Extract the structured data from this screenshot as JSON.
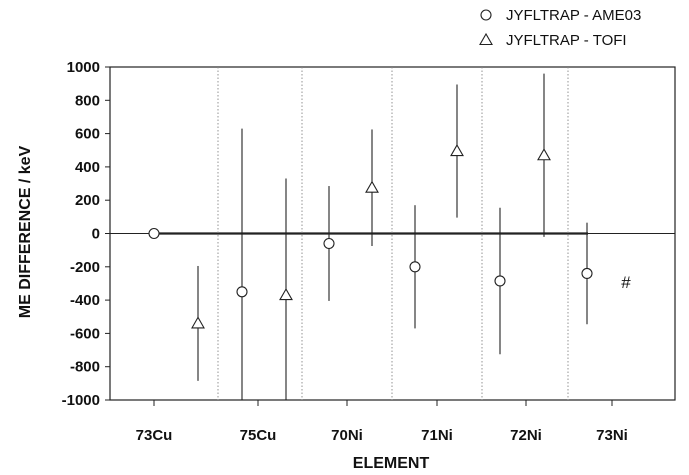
{
  "chart_data": {
    "type": "scatter",
    "xlabel": "ELEMENT",
    "ylabel": "ME DIFFERENCE / keV",
    "ylim": [
      -1000,
      1000
    ],
    "y_ticks": [
      1000,
      800,
      600,
      400,
      200,
      0,
      -200,
      -400,
      -600,
      -800,
      -1000
    ],
    "x_ticks": [
      "73Cu",
      "75Cu",
      "70Ni",
      "71Ni",
      "72Ni",
      "73Ni"
    ],
    "grid": "vertical dotted separators",
    "legend_placement": "top-right",
    "series": [
      {
        "name": "JYFLTRAP - AME03",
        "marker": "circle",
        "points": [
          {
            "element": "73Cu",
            "y": 0,
            "err": 0
          },
          {
            "element": "75Cu",
            "y": -350,
            "err": 980
          },
          {
            "element": "70Ni",
            "y": -60,
            "err": 345
          },
          {
            "element": "71Ni",
            "y": -200,
            "err": 370
          },
          {
            "element": "72Ni",
            "y": -285,
            "err": 440
          },
          {
            "element": "73Ni",
            "y": -240,
            "err": 305
          }
        ]
      },
      {
        "name": "JYFLTRAP - TOFI",
        "marker": "triangle",
        "points": [
          {
            "element": "73Cu",
            "y": -540,
            "err": 345
          },
          {
            "element": "75Cu",
            "y": -370,
            "err": 700
          },
          {
            "element": "70Ni",
            "y": 275,
            "err": 350
          },
          {
            "element": "71Ni",
            "y": 495,
            "err": 400
          },
          {
            "element": "72Ni",
            "y": 470,
            "err": 490
          }
        ]
      }
    ],
    "annotations": [
      {
        "element": "73Ni",
        "text": "#",
        "y": -290
      }
    ]
  }
}
